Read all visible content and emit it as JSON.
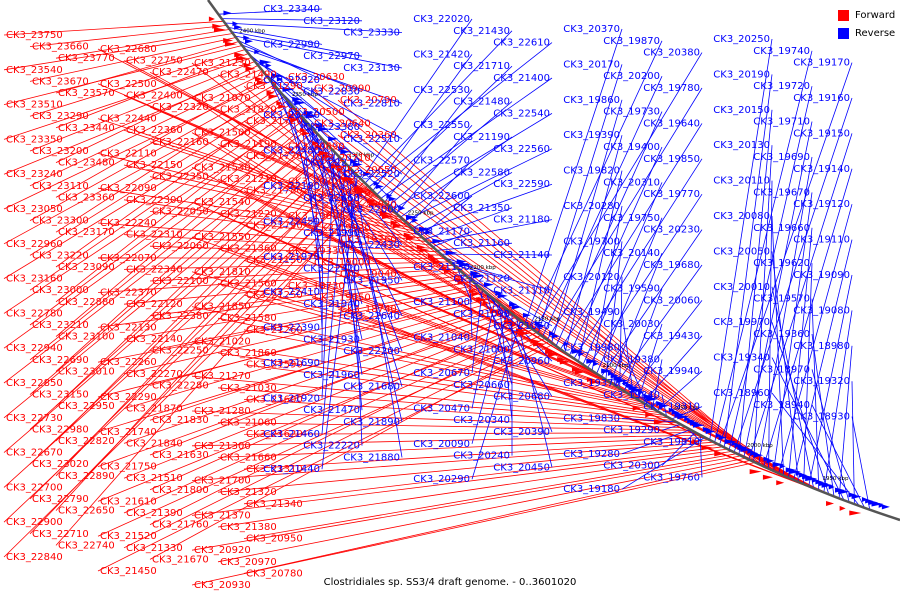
{
  "caption": "Clostridiales sp. SS3/4 draft genome. - 0..3601020",
  "legend": {
    "forward": {
      "label": "Forward",
      "color": "#ff0000"
    },
    "reverse": {
      "label": "Reverse",
      "color": "#0000ff"
    }
  },
  "kbp_ticks": [
    "2400 kbp",
    "2350 kbp",
    "2300 kbp",
    "2250 kbp",
    "2200 kbp",
    "2150 kbp",
    "2100 kbp",
    "2050 kbp",
    "2000 kbp",
    "1950 kbp"
  ],
  "labels_forward": [
    "CK3_23750",
    "CK3_23660",
    "CK3_23770",
    "CK3_23540",
    "CK3_23670",
    "CK3_23570",
    "CK3_23510",
    "CK3_23290",
    "CK3_23440",
    "CK3_23350",
    "CK3_23200",
    "CK3_23480",
    "CK3_23240",
    "CK3_23110",
    "CK3_23360",
    "CK3_23050",
    "CK3_23300",
    "CK3_23170",
    "CK3_22960",
    "CK3_23220",
    "CK3_23090",
    "CK3_23160",
    "CK3_23000",
    "CK3_22880",
    "CK3_22780",
    "CK3_23210",
    "CK3_23100",
    "CK3_22940",
    "CK3_22690",
    "CK3_23010",
    "CK3_22850",
    "CK3_23150",
    "CK3_22950",
    "CK3_22730",
    "CK3_22980",
    "CK3_22820",
    "CK3_22670",
    "CK3_23020",
    "CK3_22890",
    "CK3_22700",
    "CK3_22790",
    "CK3_22650",
    "CK3_22900",
    "CK3_22710",
    "CK3_22740",
    "CK3_22840",
    "CK3_22680",
    "CK3_22750",
    "CK3_22470",
    "CK3_22500",
    "CK3_22400",
    "CK3_22320",
    "CK3_22440",
    "CK3_22360",
    "CK3_22160",
    "CK3_22110",
    "CK3_22150",
    "CK3_22350",
    "CK3_22090",
    "CK3_22300",
    "CK3_22050",
    "CK3_22240",
    "CK3_22310",
    "CK3_22060",
    "CK3_22070",
    "CK3_22340",
    "CK3_22100",
    "CK3_22370",
    "CK3_22120",
    "CK3_22380",
    "CK3_22130",
    "CK3_22140",
    "CK3_22250",
    "CK3_22260",
    "CK3_22270",
    "CK3_22280",
    "CK3_22290",
    "CK3_21870",
    "CK3_21830",
    "CK3_21740",
    "CK3_21840",
    "CK3_21630",
    "CK3_21750",
    "CK3_21510",
    "CK3_21800",
    "CK3_21610",
    "CK3_21390",
    "CK3_21760",
    "CK3_21520",
    "CK3_21330",
    "CK3_21670",
    "CK3_21450",
    "CK3_21230",
    "CK3_21490",
    "CK3_21290",
    "CK3_21070",
    "CK3_21820",
    "CK3_21720",
    "CK3_21500",
    "CK3_21190",
    "CK3_21770",
    "CK3_21530",
    "CK3_21210",
    "CK3_21780",
    "CK3_21540",
    "CK3_21220",
    "CK3_21790",
    "CK3_21550",
    "CK3_21360",
    "CK3_21150",
    "CK3_21810",
    "CK3_21560",
    "CK3_21250",
    "CK3_21850",
    "CK3_21580",
    "CK3_21260",
    "CK3_21020",
    "CK3_21860",
    "CK3_21590",
    "CK3_21270",
    "CK3_21030",
    "CK3_21600",
    "CK3_21280",
    "CK3_21060",
    "CK3_21620",
    "CK3_21300",
    "CK3_21660",
    "CK3_21310",
    "CK3_21700",
    "CK3_21320",
    "CK3_21340",
    "CK3_21370",
    "CK3_21380",
    "CK3_20950",
    "CK3_20920",
    "CK3_20970",
    "CK3_20780",
    "CK3_20930",
    "CK3_20630",
    "CK3_20990",
    "CK3_20790",
    "CK3_20500",
    "CK3_20640",
    "CK3_20360",
    "CK3_20690",
    "CK3_20710",
    "CK3_20650",
    "CK3_20700",
    "CK3_20720",
    "CK3_20020",
    "CK3_19880",
    "CK3_19920",
    "CK3_19260",
    "CK3_19330",
    "CK3_19000",
    "CK3_19040",
    "CK3_18730",
    "CK3_19050",
    "CK3_18740"
  ],
  "labels_reverse": [
    "CK3_23340",
    "CK3_23120",
    "CK3_23330",
    "CK3_22990",
    "CK3_22970",
    "CK3_23130",
    "CK3_22920",
    "CK3_22830",
    "CK3_22810",
    "CK3_23460",
    "CK3_23380",
    "CK3_22510",
    "CK3_22480",
    "CK3_22210",
    "CK3_22520",
    "CK3_22190",
    "CK3_22460",
    "CK3_22000",
    "CK3_22450",
    "CK3_21990",
    "CK3_22430",
    "CK3_21970",
    "CK3_22420",
    "CK3_21950",
    "CK3_22410",
    "CK3_21940",
    "CK3_22640",
    "CK3_22390",
    "CK3_21930",
    "CK3_22200",
    "CK3_21690",
    "CK3_21960",
    "CK3_21680",
    "CK3_21920",
    "CK3_21470",
    "CK3_21890",
    "CK3_21460",
    "CK3_22220",
    "CK3_21880",
    "CK3_21440",
    "CK3_22020",
    "CK3_21430",
    "CK3_22610",
    "CK3_21420",
    "CK3_21710",
    "CK3_21400",
    "CK3_22530",
    "CK3_21480",
    "CK3_22540",
    "CK3_22550",
    "CK3_21190",
    "CK3_22560",
    "CK3_22570",
    "CK3_22580",
    "CK3_22590",
    "CK3_22600",
    "CK3_21350",
    "CK3_21180",
    "CK3_21170",
    "CK3_21160",
    "CK3_21140",
    "CK3_21130",
    "CK3_21120",
    "CK3_21110",
    "CK3_21100",
    "CK3_21090",
    "CK3_21050",
    "CK3_21040",
    "CK3_21000",
    "CK3_20960",
    "CK3_20670",
    "CK3_20660",
    "CK3_20680",
    "CK3_20470",
    "CK3_20340",
    "CK3_20390",
    "CK3_20090",
    "CK3_20240",
    "CK3_20450",
    "CK3_20290",
    "CK3_20370",
    "CK3_19870",
    "CK3_20380",
    "CK3_20170",
    "CK3_20200",
    "CK3_19780",
    "CK3_19860",
    "CK3_19730",
    "CK3_19640",
    "CK3_19390",
    "CK3_19400",
    "CK3_19850",
    "CK3_19820",
    "CK3_20310",
    "CK3_19770",
    "CK3_20280",
    "CK3_19750",
    "CK3_20230",
    "CK3_19700",
    "CK3_20140",
    "CK3_19680",
    "CK3_20120",
    "CK3_19590",
    "CK3_20060",
    "CK3_19490",
    "CK3_20030",
    "CK3_19430",
    "CK3_19980",
    "CK3_19380",
    "CK3_19940",
    "CK3_19370",
    "CK3_19840",
    "CK3_19310",
    "CK3_19830",
    "CK3_19290",
    "CK3_19810",
    "CK3_19280",
    "CK3_20300",
    "CK3_19760",
    "CK3_19180",
    "CK3_20250",
    "CK3_19740",
    "CK3_19170",
    "CK3_20190",
    "CK3_19720",
    "CK3_19160",
    "CK3_20150",
    "CK3_19710",
    "CK3_19150",
    "CK3_20130",
    "CK3_19690",
    "CK3_19140",
    "CK3_20110",
    "CK3_19670",
    "CK3_19120",
    "CK3_20080",
    "CK3_19660",
    "CK3_19110",
    "CK3_20050",
    "CK3_19620",
    "CK3_19090",
    "CK3_20010",
    "CK3_19570",
    "CK3_19080",
    "CK3_19970",
    "CK3_19360",
    "CK3_18980",
    "CK3_19340",
    "CK3_18970",
    "CK3_19320",
    "CK3_18960",
    "CK3_18940",
    "CK3_18930"
  ]
}
